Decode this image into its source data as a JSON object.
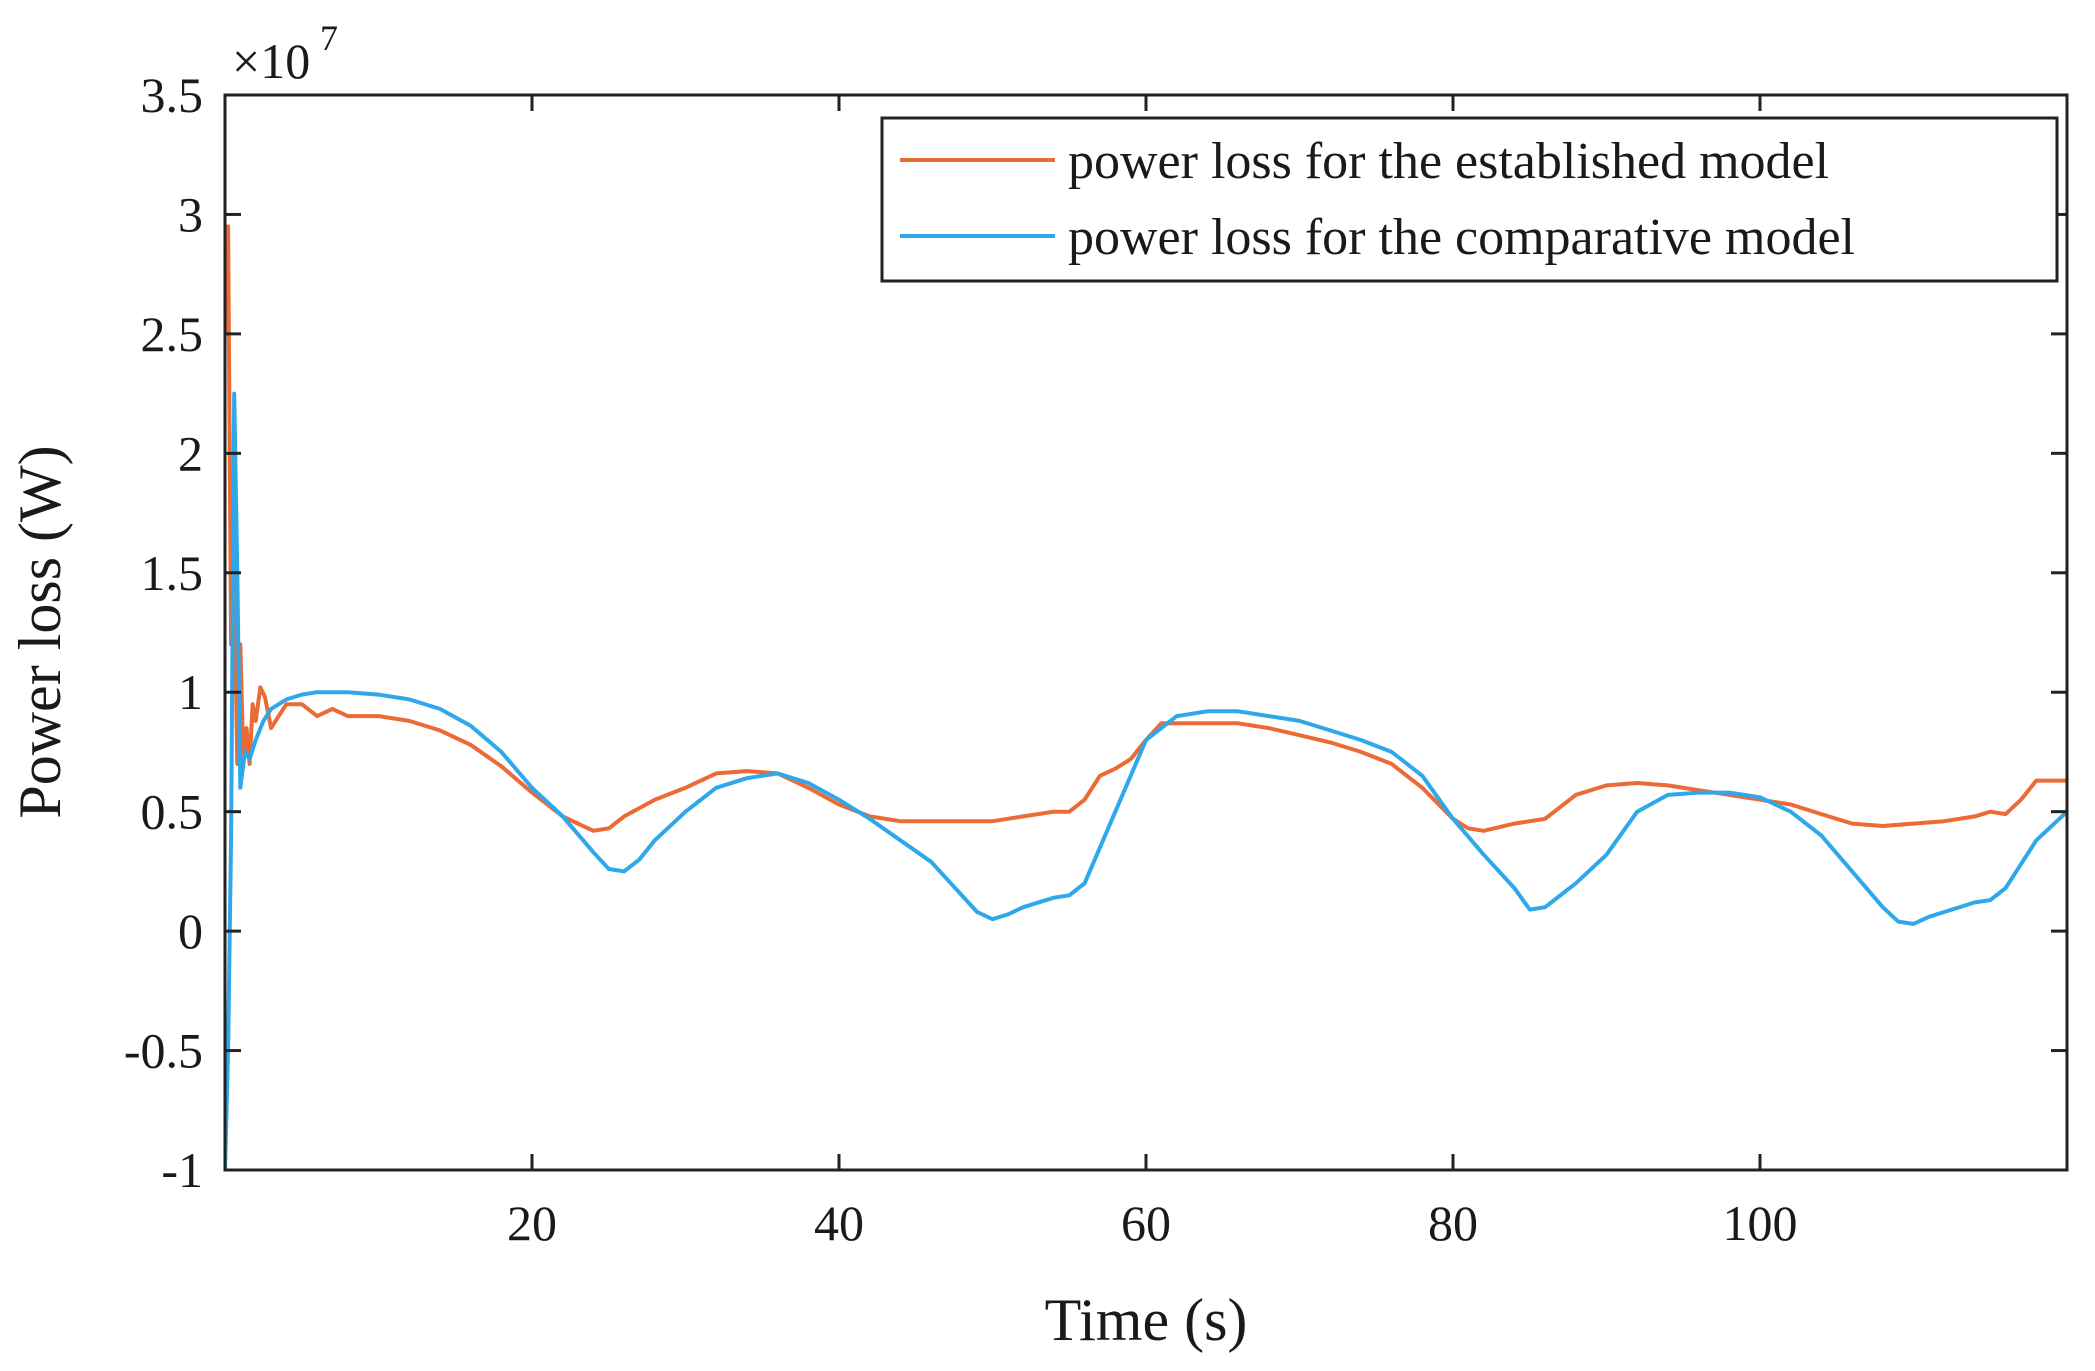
{
  "chart_data": {
    "type": "line",
    "title": "",
    "xlabel": "Time (s)",
    "ylabel": "Power loss (W)",
    "y_multiplier_label": "×10",
    "y_multiplier_exponent": "7",
    "xlim": [
      0,
      120
    ],
    "ylim": [
      -1,
      3.5
    ],
    "x_ticks": [
      20,
      40,
      60,
      80,
      100
    ],
    "x_tick_labels": [
      "20",
      "40",
      "60",
      "80",
      "100"
    ],
    "y_ticks": [
      -1,
      -0.5,
      0,
      0.5,
      1,
      1.5,
      2,
      2.5,
      3,
      3.5
    ],
    "y_tick_labels": [
      "-1",
      "-0.5",
      "0",
      "0.5",
      "1",
      "1.5",
      "2",
      "2.5",
      "3",
      "3.5"
    ],
    "legend_position": "top-right",
    "series": [
      {
        "name": "power loss for the established model",
        "color": "#ec6a35",
        "x": [
          0,
          0.2,
          0.4,
          0.5,
          0.6,
          0.8,
          1.0,
          1.2,
          1.4,
          1.6,
          1.8,
          2.0,
          2.3,
          2.6,
          3.0,
          3.5,
          4,
          5,
          6,
          7,
          8,
          9,
          10,
          12,
          14,
          16,
          18,
          20,
          22,
          24,
          25,
          26,
          28,
          30,
          32,
          34,
          36,
          38,
          40,
          42,
          44,
          46,
          48,
          50,
          52,
          54,
          55,
          56,
          57,
          58,
          59,
          60,
          61,
          62,
          64,
          66,
          68,
          70,
          72,
          74,
          76,
          78,
          80,
          81,
          82,
          84,
          86,
          88,
          90,
          92,
          94,
          96,
          98,
          100,
          102,
          104,
          106,
          108,
          110,
          112,
          114,
          115,
          116,
          117,
          118,
          119,
          120
        ],
        "values": [
          2.5,
          2.95,
          1.2,
          1.75,
          1.5,
          0.7,
          1.2,
          0.72,
          0.85,
          0.7,
          0.95,
          0.88,
          1.02,
          0.98,
          0.85,
          0.9,
          0.95,
          0.95,
          0.9,
          0.93,
          0.9,
          0.9,
          0.9,
          0.88,
          0.84,
          0.78,
          0.69,
          0.58,
          0.48,
          0.42,
          0.43,
          0.48,
          0.55,
          0.6,
          0.66,
          0.67,
          0.66,
          0.6,
          0.53,
          0.48,
          0.46,
          0.46,
          0.46,
          0.46,
          0.48,
          0.5,
          0.5,
          0.55,
          0.65,
          0.68,
          0.72,
          0.8,
          0.87,
          0.87,
          0.87,
          0.87,
          0.85,
          0.82,
          0.79,
          0.75,
          0.7,
          0.6,
          0.47,
          0.43,
          0.42,
          0.45,
          0.47,
          0.57,
          0.61,
          0.62,
          0.61,
          0.59,
          0.57,
          0.55,
          0.53,
          0.49,
          0.45,
          0.44,
          0.45,
          0.46,
          0.48,
          0.5,
          0.49,
          0.55,
          0.63,
          0.63,
          0.63
        ]
      },
      {
        "name": "power loss for the comparative model",
        "color": "#2ea8ea",
        "x": [
          0,
          0.2,
          0.4,
          0.6,
          0.8,
          1.0,
          1.3,
          1.6,
          2.0,
          2.5,
          3,
          4,
          5,
          6,
          7,
          8,
          10,
          12,
          14,
          16,
          18,
          20,
          22,
          24,
          25,
          26,
          27,
          28,
          30,
          32,
          34,
          36,
          38,
          40,
          42,
          44,
          46,
          48,
          49,
          50,
          51,
          52,
          54,
          55,
          56,
          58,
          60,
          62,
          64,
          66,
          68,
          70,
          72,
          74,
          76,
          78,
          80,
          82,
          84,
          85,
          86,
          88,
          90,
          92,
          94,
          96,
          98,
          100,
          102,
          104,
          106,
          108,
          109,
          110,
          111,
          112,
          114,
          115,
          116,
          118,
          120
        ],
        "values": [
          -1.0,
          -0.5,
          0.4,
          2.25,
          1.5,
          0.6,
          0.75,
          0.72,
          0.8,
          0.88,
          0.93,
          0.97,
          0.99,
          1.0,
          1.0,
          1.0,
          0.99,
          0.97,
          0.93,
          0.86,
          0.75,
          0.6,
          0.48,
          0.33,
          0.26,
          0.25,
          0.3,
          0.38,
          0.5,
          0.6,
          0.64,
          0.66,
          0.62,
          0.55,
          0.47,
          0.38,
          0.29,
          0.15,
          0.08,
          0.05,
          0.07,
          0.1,
          0.14,
          0.15,
          0.2,
          0.5,
          0.8,
          0.9,
          0.92,
          0.92,
          0.9,
          0.88,
          0.84,
          0.8,
          0.75,
          0.65,
          0.47,
          0.32,
          0.18,
          0.09,
          0.1,
          0.2,
          0.32,
          0.5,
          0.57,
          0.58,
          0.58,
          0.56,
          0.5,
          0.4,
          0.25,
          0.1,
          0.04,
          0.03,
          0.06,
          0.08,
          0.12,
          0.13,
          0.18,
          0.38,
          0.5
        ]
      }
    ]
  }
}
